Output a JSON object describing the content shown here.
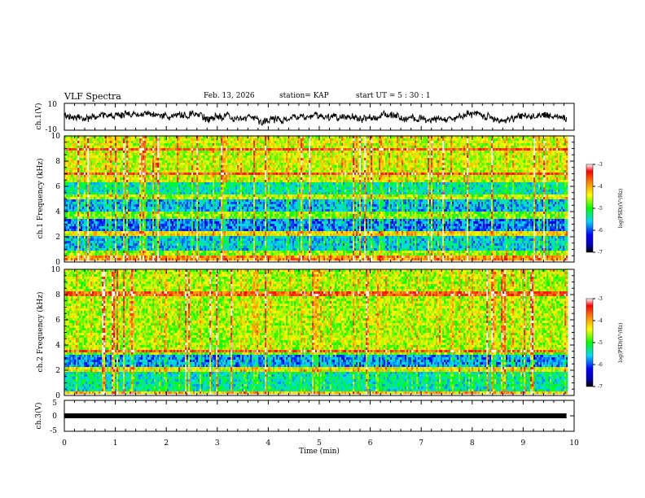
{
  "header": {
    "title": "VLF Spectra",
    "date": "Feb. 13, 2026",
    "station": "station= KAP",
    "start_label": "start UT =",
    "start_time": "5 : 30 : 1"
  },
  "colors": {
    "red": "#ff0000",
    "orange": "#ff8000",
    "yellow": "#ffff00",
    "green": "#00ff00",
    "cyan": "#00e0ff",
    "blue": "#0000ff",
    "black": "#000000"
  },
  "chart_data": [
    {
      "type": "line",
      "title": "VLF Spectra",
      "ylabel": "ch.1(V)",
      "xlabel": "",
      "xlim": [
        0,
        10
      ],
      "ylim": [
        -10,
        10
      ],
      "yticks": [
        "10",
        "-10"
      ],
      "series": [
        {
          "name": "ch.1 waveform",
          "x_range": [
            0,
            9.85
          ],
          "approx_level": 0,
          "approx_amplitude": 5
        }
      ]
    },
    {
      "type": "heatmap",
      "ylabel": "ch.1 Frequency (kHz)",
      "xlim": [
        0,
        10
      ],
      "ylim": [
        0,
        10
      ],
      "yticks": [
        "0",
        "2",
        "4",
        "6",
        "8",
        "10"
      ],
      "colorbar": {
        "label": "log(PSD)(V²/Hz)",
        "range": [
          -7,
          -3
        ],
        "ticks": [
          "-3",
          "-4",
          "-5",
          "-6",
          "-7"
        ]
      },
      "bands": [
        {
          "from": 0,
          "to": 0.5,
          "level": -3.9
        },
        {
          "from": 0.5,
          "to": 2.0,
          "level": -5.6
        },
        {
          "from": 2.0,
          "to": 2.4,
          "level": -4.3
        },
        {
          "from": 2.4,
          "to": 3.4,
          "level": -5.9
        },
        {
          "from": 3.4,
          "to": 4.0,
          "level": -4.8
        },
        {
          "from": 4.0,
          "to": 5.0,
          "level": -5.7
        },
        {
          "from": 5.0,
          "to": 5.4,
          "level": -4.6
        },
        {
          "from": 5.4,
          "to": 6.4,
          "level": -5.4
        },
        {
          "from": 6.4,
          "to": 10.0,
          "level": -4.5
        }
      ]
    },
    {
      "type": "heatmap",
      "ylabel": "ch.2 Frequency (kHz)",
      "xlim": [
        0,
        10
      ],
      "ylim": [
        0,
        10
      ],
      "yticks": [
        "0",
        "2",
        "4",
        "6",
        "8",
        "10"
      ],
      "colorbar": {
        "label": "log(PSD)(V²/Hz)",
        "range": [
          -7,
          -3
        ],
        "ticks": [
          "-3",
          "-4",
          "-5",
          "-6",
          "-7"
        ]
      },
      "bands": [
        {
          "from": 0,
          "to": 0.4,
          "level": -4.2
        },
        {
          "from": 0.4,
          "to": 1.8,
          "level": -5.4
        },
        {
          "from": 1.8,
          "to": 2.2,
          "level": -4.4
        },
        {
          "from": 2.2,
          "to": 3.2,
          "level": -5.8
        },
        {
          "from": 3.2,
          "to": 3.5,
          "level": -4.8
        },
        {
          "from": 3.5,
          "to": 10.0,
          "level": -4.6
        }
      ]
    },
    {
      "type": "line",
      "ylabel": "ch.3(V)",
      "xlabel": "Time (min)",
      "xlim": [
        0,
        10
      ],
      "ylim": [
        -5,
        5
      ],
      "yticks": [
        "5",
        "0",
        "-5"
      ],
      "xticks": [
        "0",
        "1",
        "2",
        "3",
        "4",
        "5",
        "6",
        "7",
        "8",
        "9",
        "10"
      ],
      "series": [
        {
          "name": "ch.3 level",
          "x_range": [
            0,
            9.85
          ],
          "approx_level": 0
        }
      ]
    }
  ]
}
